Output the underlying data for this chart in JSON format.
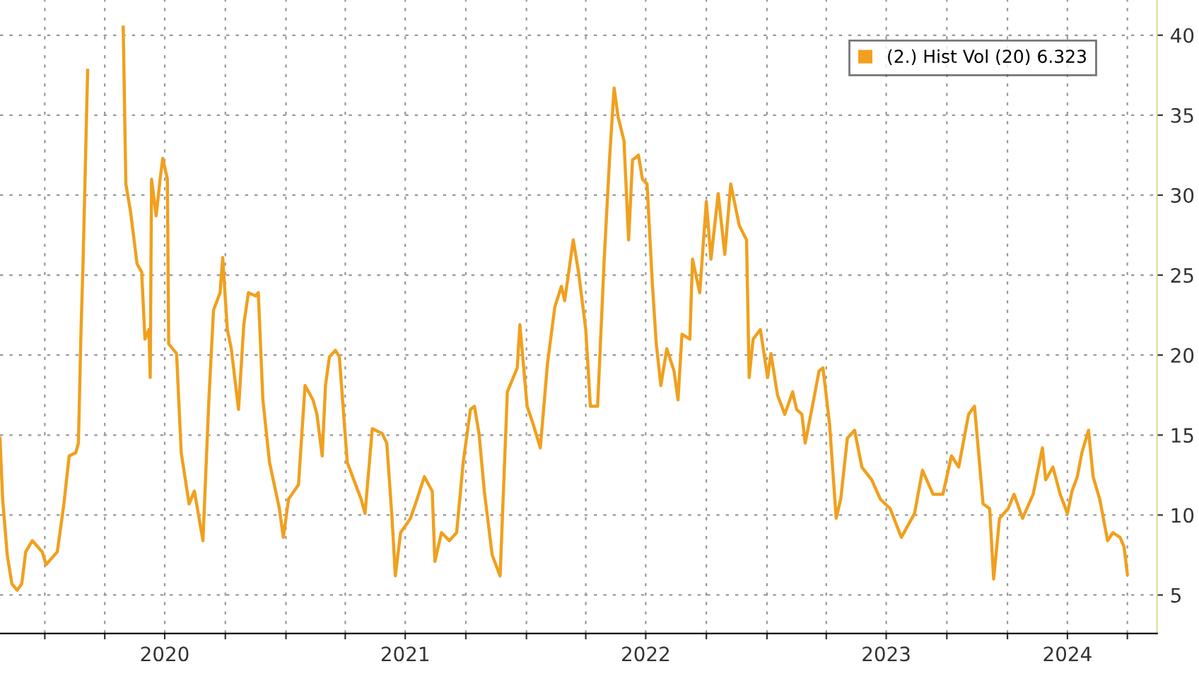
{
  "chart_data": {
    "type": "line",
    "x": [
      "2019-10-25",
      "2019-10-29",
      "2019-11-05",
      "2019-11-12",
      "2019-11-20",
      "2019-11-27",
      "2019-12-03",
      "2019-12-13",
      "2019-12-28",
      "2020-01-03",
      "2020-01-20",
      "2020-01-30",
      "2020-02-07",
      "2020-02-17",
      "2020-02-21",
      "2020-02-25",
      "2020-02-28",
      "2020-03-06",
      "2020-03-08",
      "2020-04-01",
      "2020-04-25",
      "2020-04-29",
      "2020-05-03",
      "2020-05-10",
      "2020-05-20",
      "2020-05-27",
      "2020-06-01",
      "2020-06-07",
      "2020-06-09",
      "2020-06-11",
      "2020-06-18",
      "2020-06-24",
      "2020-06-28",
      "2020-07-05",
      "2020-07-07",
      "2020-07-19",
      "2020-07-26",
      "2020-08-07",
      "2020-08-15",
      "2020-08-28",
      "2020-09-06",
      "2020-09-13",
      "2020-09-23",
      "2020-09-27",
      "2020-10-04",
      "2020-10-10",
      "2020-10-21",
      "2020-10-29",
      "2020-11-05",
      "2020-11-16",
      "2020-11-20",
      "2020-11-27",
      "2020-12-07",
      "2020-12-22",
      "2020-12-28",
      "2021-01-05",
      "2021-01-20",
      "2021-01-30",
      "2021-02-11",
      "2021-02-17",
      "2021-02-25",
      "2021-03-02",
      "2021-03-08",
      "2021-03-17",
      "2021-03-23",
      "2021-04-04",
      "2021-04-14",
      "2021-04-25",
      "2021-05-01",
      "2021-05-12",
      "2021-05-27",
      "2021-06-03",
      "2021-06-11",
      "2021-06-16",
      "2021-06-24",
      "2021-07-09",
      "2021-07-19",
      "2021-07-30",
      "2021-08-11",
      "2021-08-15",
      "2021-08-25",
      "2021-09-06",
      "2021-09-17",
      "2021-09-27",
      "2021-10-08",
      "2021-10-14",
      "2021-10-21",
      "2021-10-29",
      "2021-11-10",
      "2021-11-22",
      "2021-12-03",
      "2021-12-18",
      "2021-12-22",
      "2022-01-02",
      "2022-01-11",
      "2022-01-22",
      "2022-02-02",
      "2022-02-13",
      "2022-02-23",
      "2022-02-28",
      "2022-03-13",
      "2022-03-21",
      "2022-04-01",
      "2022-04-08",
      "2022-04-19",
      "2022-04-29",
      "2022-05-07",
      "2022-05-14",
      "2022-05-20",
      "2022-05-29",
      "2022-06-05",
      "2022-06-11",
      "2022-06-20",
      "2022-06-26",
      "2022-07-03",
      "2022-07-11",
      "2022-07-17",
      "2022-07-24",
      "2022-08-02",
      "2022-08-13",
      "2022-08-19",
      "2022-08-25",
      "2022-09-06",
      "2022-09-10",
      "2022-09-21",
      "2022-10-01",
      "2022-10-08",
      "2022-10-19",
      "2022-10-29",
      "2022-11-07",
      "2022-11-20",
      "2022-12-01",
      "2022-12-05",
      "2022-12-11",
      "2022-12-22",
      "2023-01-02",
      "2023-01-07",
      "2023-01-17",
      "2023-01-28",
      "2023-02-09",
      "2023-02-15",
      "2023-02-23",
      "2023-02-28",
      "2023-03-10",
      "2023-03-21",
      "2023-03-27",
      "2023-04-06",
      "2023-04-16",
      "2023-04-23",
      "2023-05-03",
      "2023-05-14",
      "2023-05-25",
      "2023-06-09",
      "2023-06-22",
      "2023-07-07",
      "2023-07-24",
      "2023-08-13",
      "2023-08-25",
      "2023-09-10",
      "2023-09-25",
      "2023-10-08",
      "2023-10-19",
      "2023-11-03",
      "2023-11-12",
      "2023-11-25",
      "2023-12-05",
      "2023-12-11",
      "2023-12-20",
      "2024-01-02",
      "2024-01-11",
      "2024-01-24",
      "2024-02-09",
      "2024-02-23",
      "2024-02-28",
      "2024-03-10",
      "2024-03-21",
      "2024-04-01",
      "2024-04-08",
      "2024-04-16",
      "2024-04-23",
      "2024-05-03",
      "2024-05-10",
      "2024-05-20",
      "2024-06-01",
      "2024-06-09",
      "2024-06-20",
      "2024-06-26",
      "2024-07-01"
    ],
    "series": [
      {
        "name": "(2.) Hist Vol (20) 6.323",
        "color": "#f0a01e",
        "values": [
          14.8,
          11.0,
          7.5,
          5.7,
          5.3,
          5.7,
          7.7,
          8.4,
          7.7,
          6.9,
          7.7,
          10.7,
          13.7,
          13.9,
          14.5,
          21.6,
          25.7,
          37.8,
          null,
          null,
          null,
          40.5,
          30.7,
          29.0,
          25.7,
          25.2,
          21.0,
          21.6,
          18.6,
          31.0,
          28.7,
          31.0,
          32.3,
          31.0,
          20.7,
          20.1,
          13.9,
          10.7,
          11.5,
          8.4,
          17.2,
          22.8,
          23.9,
          26.1,
          21.6,
          20.4,
          16.6,
          21.9,
          23.9,
          23.7,
          23.9,
          17.2,
          13.3,
          10.4,
          8.6,
          11.0,
          11.9,
          18.1,
          17.2,
          16.3,
          13.7,
          18.1,
          19.9,
          20.3,
          19.9,
          13.3,
          12.2,
          11.0,
          10.1,
          15.4,
          15.1,
          14.5,
          9.8,
          6.2,
          8.9,
          9.8,
          11.0,
          12.4,
          11.5,
          7.1,
          8.9,
          8.4,
          8.9,
          13.3,
          16.6,
          16.8,
          15.1,
          11.5,
          7.5,
          6.2,
          17.7,
          19.2,
          21.9,
          16.8,
          15.7,
          14.2,
          19.5,
          23.0,
          24.3,
          23.4,
          27.2,
          25.2,
          21.6,
          16.8,
          16.8,
          26.0,
          32.2,
          36.7,
          34.9,
          33.4,
          27.2,
          32.2,
          32.5,
          31.0,
          30.7,
          24.5,
          20.7,
          18.1,
          20.4,
          19.0,
          17.2,
          21.3,
          21.0,
          26.0,
          23.9,
          29.6,
          26.0,
          30.1,
          26.3,
          30.7,
          28.1,
          27.2,
          18.6,
          21.0,
          21.6,
          18.6,
          20.1,
          17.5,
          16.3,
          17.7,
          16.6,
          16.3,
          14.5,
          16.6,
          19.0,
          19.2,
          15.7,
          9.8,
          11.0,
          14.8,
          15.3,
          13.0,
          12.2,
          11.0,
          10.4,
          8.6,
          10.1,
          12.8,
          11.3,
          11.3,
          13.7,
          13.0,
          16.3,
          16.8,
          10.7,
          10.4,
          6.0,
          9.8,
          10.4,
          11.3,
          9.8,
          11.3,
          14.2,
          12.2,
          13.0,
          11.3,
          10.1,
          11.5,
          12.4,
          13.9,
          15.3,
          12.4,
          11.0,
          8.4,
          8.9,
          8.6,
          8.0,
          6.3
        ]
      }
    ],
    "xlim": [
      "2019-10-25",
      "2024-08-15"
    ],
    "xticks": [
      {
        "value": "2020-01-01",
        "label": null
      },
      {
        "value": "2020-04-01",
        "label": null
      },
      {
        "value": "2020-07-01",
        "label": "2020"
      },
      {
        "value": "2020-10-01",
        "label": null
      },
      {
        "value": "2021-01-01",
        "label": null
      },
      {
        "value": "2021-04-01",
        "label": null
      },
      {
        "value": "2021-07-01",
        "label": "2021"
      },
      {
        "value": "2021-10-01",
        "label": null
      },
      {
        "value": "2022-01-01",
        "label": null
      },
      {
        "value": "2022-04-01",
        "label": null
      },
      {
        "value": "2022-07-01",
        "label": "2022"
      },
      {
        "value": "2022-10-01",
        "label": null
      },
      {
        "value": "2023-01-01",
        "label": null
      },
      {
        "value": "2023-04-01",
        "label": null
      },
      {
        "value": "2023-07-01",
        "label": "2023"
      },
      {
        "value": "2023-10-01",
        "label": null
      },
      {
        "value": "2024-01-01",
        "label": null
      },
      {
        "value": "2024-04-01",
        "label": "2024"
      },
      {
        "value": "2024-07-01",
        "label": null
      }
    ],
    "ylim": [
      2.6,
      42.2
    ],
    "yticks": [
      5,
      10,
      15,
      20,
      25,
      30,
      35,
      40
    ],
    "grid": true,
    "legend": "top right",
    "line_style": "solid",
    "marker": "none"
  }
}
